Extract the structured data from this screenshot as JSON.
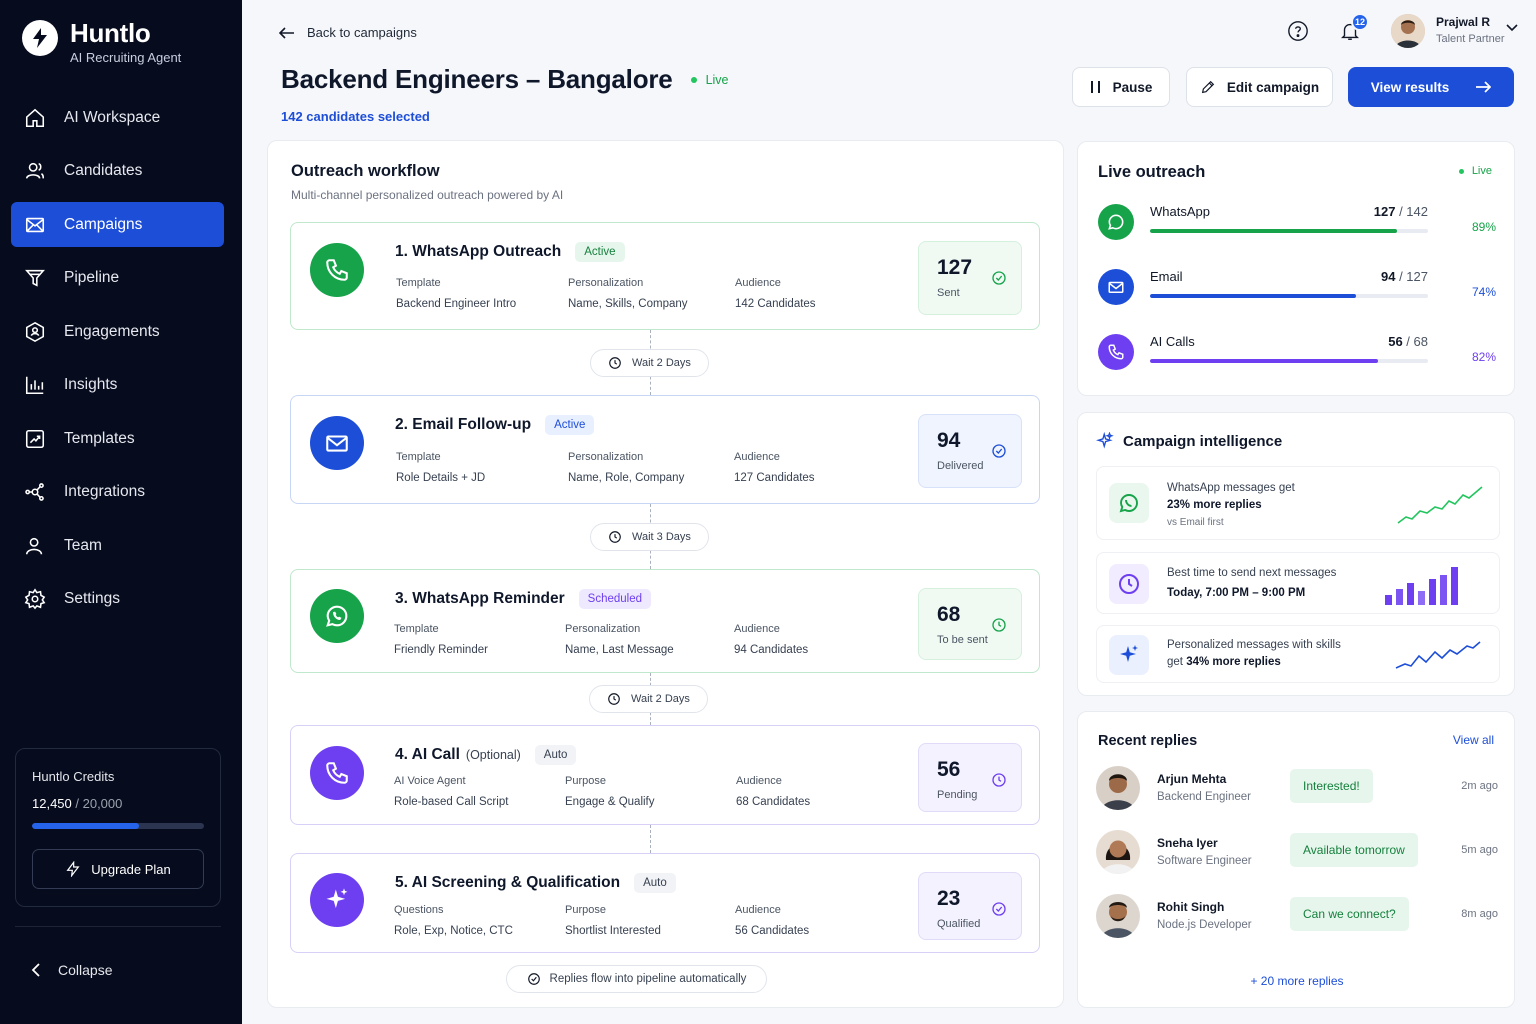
{
  "brand": {
    "name": "Huntlo",
    "tagline": "AI Recruiting Agent"
  },
  "sidebar": {
    "items": [
      {
        "label": "AI Workspace",
        "icon": "home-icon"
      },
      {
        "label": "Candidates",
        "icon": "users-icon"
      },
      {
        "label": "Campaigns",
        "icon": "mail-icon",
        "active": true
      },
      {
        "label": "Pipeline",
        "icon": "funnel-icon"
      },
      {
        "label": "Engagements",
        "icon": "shield-icon"
      },
      {
        "label": "Insights",
        "icon": "bar-chart-icon"
      },
      {
        "label": "Templates",
        "icon": "template-icon"
      },
      {
        "label": "Integrations",
        "icon": "plug-icon"
      },
      {
        "label": "Team",
        "icon": "team-icon"
      },
      {
        "label": "Settings",
        "icon": "gear-icon"
      }
    ],
    "credits": {
      "title": "Huntlo Credits",
      "used": "12,450",
      "total": "20,000",
      "fraction": 0.6225,
      "upgrade_label": "Upgrade Plan"
    },
    "collapse_label": "Collapse"
  },
  "header": {
    "back_label": "Back to campaigns",
    "title": "Backend Engineers – Bangalore",
    "status": "Live",
    "selected": "142 candidates selected",
    "notifications": "12",
    "user": {
      "name": "Prajwal R",
      "role": "Talent Partner"
    },
    "actions": {
      "pause": "Pause",
      "edit": "Edit campaign",
      "view": "View results"
    }
  },
  "workflow": {
    "title": "Outreach workflow",
    "subtitle": "Multi-channel personalized outreach powered by AI",
    "steps": [
      {
        "title": "1. WhatsApp Outreach",
        "badge": "Active",
        "f1_label": "Template",
        "f1_value": "Backend Engineer Intro",
        "f2_label": "Personalization",
        "f2_value": "Name, Skills, Company",
        "f3_label": "Audience",
        "f3_value": "142 Candidates",
        "metric": "127",
        "metric_label": "Sent"
      },
      {
        "title": "2. Email Follow-up",
        "badge": "Active",
        "f1_label": "Template",
        "f1_value": "Role Details + JD",
        "f2_label": "Personalization",
        "f2_value": "Name, Role, Company",
        "f3_label": "Audience",
        "f3_value": "127 Candidates",
        "metric": "94",
        "metric_label": "Delivered"
      },
      {
        "title": "3. WhatsApp Reminder",
        "badge": "Scheduled",
        "f1_label": "Template",
        "f1_value": "Friendly Reminder",
        "f2_label": "Personalization",
        "f2_value": "Name, Last Message",
        "f3_label": "Audience",
        "f3_value": "94 Candidates",
        "metric": "68",
        "metric_label": "To be sent"
      },
      {
        "title": "4. AI Call",
        "optional": "(Optional)",
        "badge": "Auto",
        "f1_label": "AI Voice Agent",
        "f1_value": "Role-based Call Script",
        "f2_label": "Purpose",
        "f2_value": "Engage & Qualify",
        "f3_label": "Audience",
        "f3_value": "68 Candidates",
        "metric": "56",
        "metric_label": "Pending"
      },
      {
        "title": "5. AI Screening & Qualification",
        "badge": "Auto",
        "f1_label": "Questions",
        "f1_value": "Role, Exp, Notice, CTC",
        "f2_label": "Purpose",
        "f2_value": "Shortlist Interested",
        "f3_label": "Audience",
        "f3_value": "56 Candidates",
        "metric": "23",
        "metric_label": "Qualified"
      }
    ],
    "waits": [
      "Wait 2 Days",
      "Wait 3 Days",
      "Wait 2 Days"
    ],
    "footer": "Replies flow into pipeline automatically"
  },
  "live_outreach": {
    "title": "Live outreach",
    "status": "Live",
    "channels": [
      {
        "name": "WhatsApp",
        "done": "127",
        "total": "142",
        "pct": "89%",
        "fraction": 0.89,
        "color": "#16a34a"
      },
      {
        "name": "Email",
        "done": "94",
        "total": "127",
        "pct": "74%",
        "fraction": 0.74,
        "color": "#1d4ed8"
      },
      {
        "name": "AI Calls",
        "done": "56",
        "total": "68",
        "pct": "82%",
        "fraction": 0.82,
        "color": "#6d3ff0"
      }
    ]
  },
  "intelligence": {
    "title": "Campaign intelligence",
    "cards": [
      {
        "line1": "WhatsApp messages get",
        "line2": "23% more replies",
        "line3": "vs Email first"
      },
      {
        "line1": "Best time to send next messages",
        "line2": "Today, 7:00 PM – 9:00 PM"
      },
      {
        "line1": "Personalized messages with skills",
        "line2_prefix": "get ",
        "line2": "34% more replies"
      }
    ]
  },
  "replies": {
    "title": "Recent replies",
    "view_all": "View all",
    "items": [
      {
        "name": "Arjun Mehta",
        "role": "Backend Engineer",
        "tag": "Interested!",
        "time": "2m ago"
      },
      {
        "name": "Sneha Iyer",
        "role": "Software Engineer",
        "tag": "Available tomorrow",
        "time": "5m ago"
      },
      {
        "name": "Rohit Singh",
        "role": "Node.js Developer",
        "tag": "Can we connect?",
        "time": "8m ago"
      }
    ],
    "more": "+ 20 more replies"
  },
  "colors": {
    "accent": "#1d4ed8",
    "sidebar": "#060b1d",
    "whatsapp": "#16a34a",
    "purple": "#6d3ff0"
  }
}
